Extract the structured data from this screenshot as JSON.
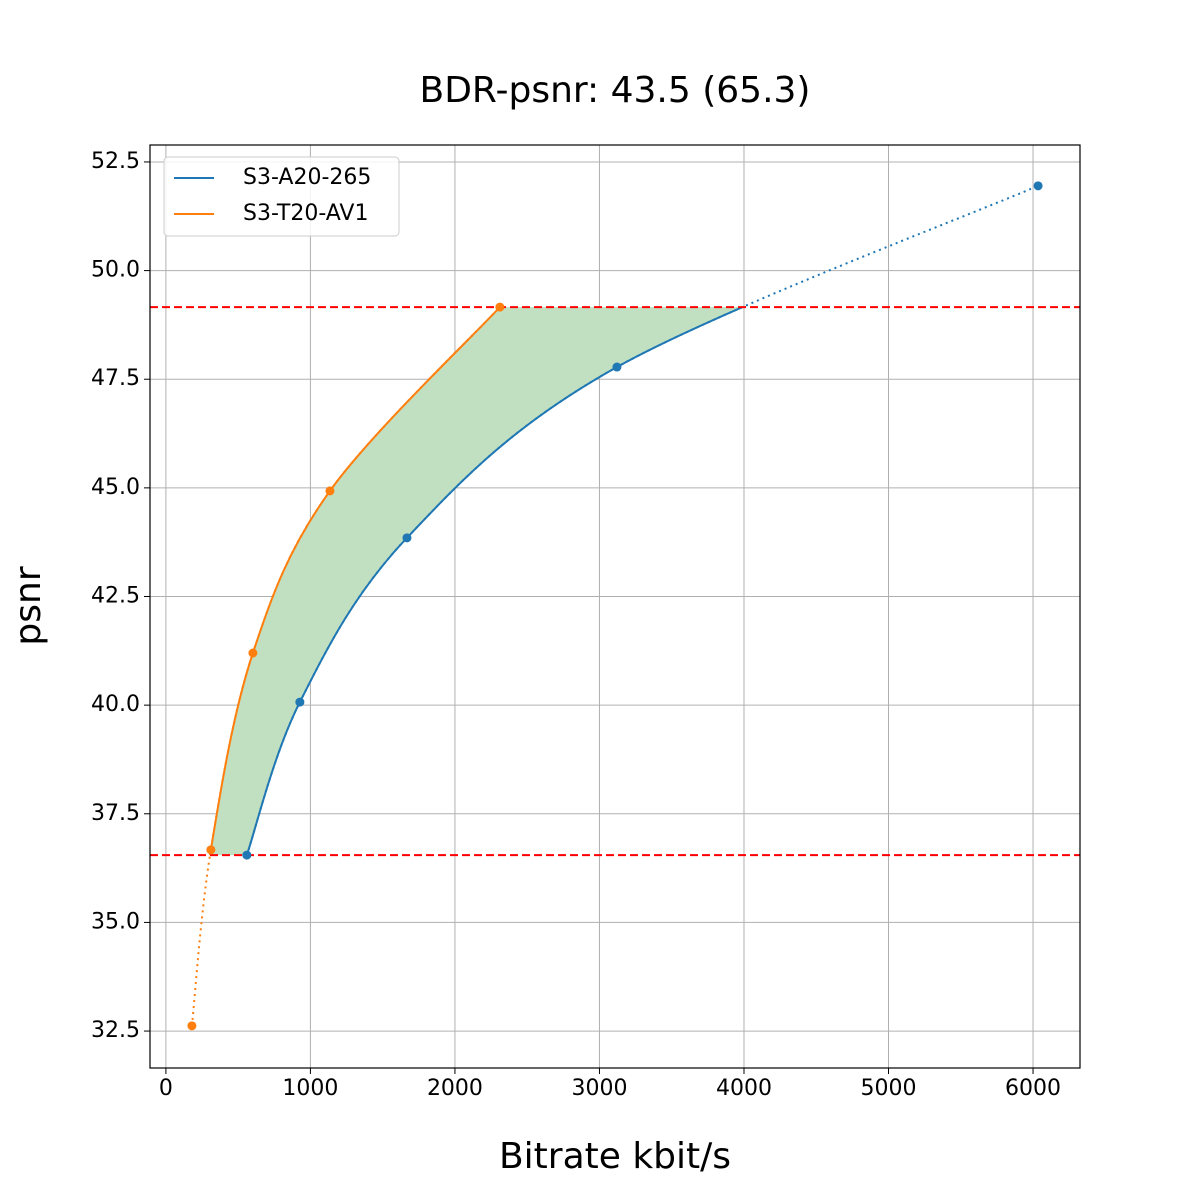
{
  "chart_data": {
    "type": "line",
    "title": "BDR-psnr: 43.5 (65.3)",
    "x_label": "Bitrate kbit/s",
    "y_label": "psnr",
    "series": [
      {
        "name": "S3-A20-265",
        "color": "#1f77b4",
        "x": [
          560,
          927,
          1668,
          3121,
          6035
        ],
        "values": [
          36.55,
          40.07,
          43.85,
          47.78,
          51.95
        ]
      },
      {
        "name": "S3-T20-AV1",
        "color": "#ff7f0e",
        "x": [
          180,
          311,
          602,
          1135,
          2311
        ],
        "values": [
          32.62,
          36.67,
          41.2,
          44.93,
          49.16
        ]
      }
    ],
    "hlines": [
      36.55,
      49.16
    ],
    "hline_color": "#ff0000",
    "fill_color": "#c1e0c1",
    "xlim": [
      -110,
      6325
    ],
    "ylim": [
      31.65,
      52.89
    ],
    "xticks": [
      0,
      1000,
      2000,
      3000,
      4000,
      5000,
      6000
    ],
    "yticks": [
      32.5,
      {
        "value": 35,
        "label": "35.0"
      },
      37.5,
      {
        "value": 40,
        "label": "40.0"
      },
      42.5,
      {
        "value": 45,
        "label": "45.0"
      },
      47.5,
      {
        "value": 50,
        "label": "50.0"
      },
      52.5
    ],
    "grid": true,
    "legend": "upper left"
  }
}
